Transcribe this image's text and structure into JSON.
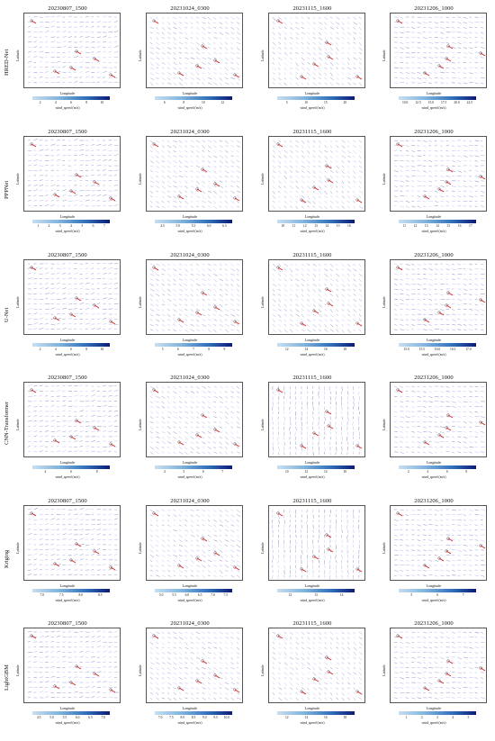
{
  "figure": {
    "column_titles": [
      "20230807_1500",
      "20231024_0300",
      "20231115_1600",
      "20231206_1000"
    ],
    "axis_labels": {
      "x": "Longitude",
      "y": "Latitude",
      "colorbar": "wind_speed (m/s)"
    },
    "rows": [
      {
        "label": "HRED-Net",
        "colorbar_ticks": [
          [
            "2",
            "4",
            "6",
            "8",
            "10"
          ],
          [
            "6",
            "8",
            "10",
            "12"
          ],
          [
            "5",
            "10",
            "15",
            "20"
          ],
          [
            "10.0",
            "12.5",
            "15.0",
            "17.5",
            "20.0",
            "22.5"
          ]
        ]
      },
      {
        "label": "PPPNet",
        "colorbar_ticks": [
          [
            "1",
            "2",
            "3",
            "4",
            "5",
            "6",
            "7"
          ],
          [
            "4.5",
            "5.0",
            "5.5",
            "6.0",
            "6.5"
          ],
          [
            "10",
            "11",
            "12",
            "13",
            "14",
            "15",
            "16"
          ],
          [
            "11",
            "12",
            "13",
            "14",
            "15",
            "16",
            "17"
          ]
        ]
      },
      {
        "label": "U-Net",
        "colorbar_ticks": [
          [
            "2",
            "4",
            "6",
            "8",
            "10"
          ],
          [
            "5",
            "6",
            "7",
            "8",
            "9"
          ],
          [
            "12",
            "14",
            "16",
            "18"
          ],
          [
            "15.0",
            "15.5",
            "16.0",
            "16.5",
            "17.0"
          ]
        ]
      },
      {
        "label": "CNN-Transformer",
        "colorbar_ticks": [
          [
            "4",
            "6",
            "8"
          ],
          [
            "4",
            "5",
            "6",
            "7"
          ],
          [
            "10",
            "12",
            "14",
            "16"
          ],
          [
            "2",
            "4",
            "6",
            "8"
          ]
        ]
      },
      {
        "label": "Kriging",
        "colorbar_ticks": [
          [
            "7.0",
            "7.5",
            "8.0",
            "8.5"
          ],
          [
            "5.0",
            "5.5",
            "6.0",
            "6.5",
            "7.0",
            "7.5"
          ],
          [
            "12",
            "13",
            "14"
          ],
          [
            "5",
            "6",
            "7"
          ]
        ]
      },
      {
        "label": "LightGBM",
        "colorbar_ticks": [
          [
            "4.5",
            "5.0",
            "5.5",
            "6.0",
            "6.5",
            "7.0"
          ],
          [
            "7.0",
            "7.5",
            "8.0",
            "8.5",
            "9.0",
            "9.5",
            "10.0"
          ],
          [
            "12",
            "14",
            "16",
            "18"
          ],
          [
            "1",
            "2",
            "3",
            "4",
            "5"
          ]
        ]
      }
    ],
    "station_labels": [
      [
        "17.8",
        "6.8",
        "6.5",
        "5.0",
        "6.7",
        "6.9"
      ],
      [
        "6.0",
        "12.6",
        "8.6",
        "9.0",
        "10.6",
        "12.8"
      ],
      [
        "18.0",
        "15.2",
        "17.5",
        "18.6",
        "13.8",
        "17.6"
      ],
      [
        "14.8",
        "19.5",
        "17.7",
        "18.9",
        "17.5",
        "18.0"
      ]
    ]
  }
}
